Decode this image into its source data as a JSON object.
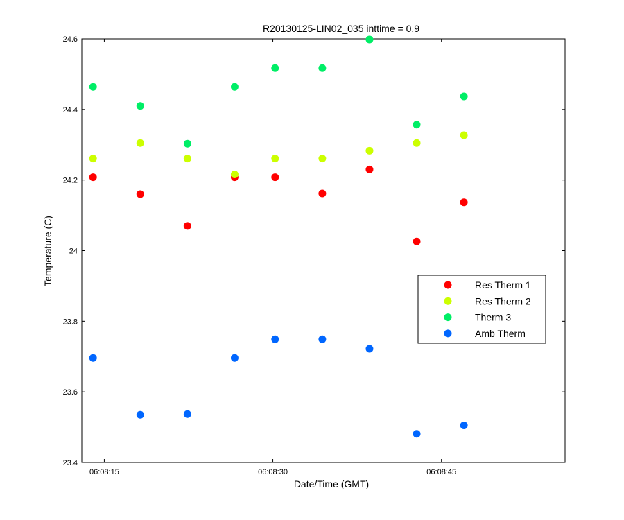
{
  "chart_data": {
    "type": "scatter",
    "title": "R20130125-LIN02_035 inttime = 0.9",
    "xlabel": "Date/Time (GMT)",
    "ylabel": "Temperature (C)",
    "xlim": [
      "06:08:13",
      "06:08:56"
    ],
    "ylim": [
      23.4,
      24.6
    ],
    "x_ticks": [
      "06:08:15",
      "06:08:30",
      "06:08:45"
    ],
    "y_ticks": [
      "23.4",
      "23.6",
      "23.8",
      "24",
      "24.2",
      "24.4",
      "24.6"
    ],
    "grid": false,
    "legend_position": "right",
    "x": [
      "06:08:14",
      "06:08:18.2",
      "06:08:22.4",
      "06:08:26.6",
      "06:08:30.2",
      "06:08:34.4",
      "06:08:38.6",
      "06:08:42.8",
      "06:08:47"
    ],
    "series": [
      {
        "name": "Res Therm 1",
        "color": "#ff0000",
        "values": [
          24.208,
          24.16,
          24.07,
          24.208,
          24.208,
          24.162,
          24.23,
          24.026,
          24.137
        ]
      },
      {
        "name": "Res Therm 2",
        "color": "#ccff00",
        "values": [
          24.261,
          24.305,
          24.261,
          24.216,
          24.261,
          24.261,
          24.283,
          24.305,
          24.327
        ]
      },
      {
        "name": "Therm 3",
        "color": "#00ee66",
        "values": [
          24.464,
          24.41,
          24.303,
          24.464,
          24.517,
          24.517,
          24.598,
          24.357,
          24.437
        ]
      },
      {
        "name": "Amb Therm",
        "color": "#0066ff",
        "values": [
          23.696,
          23.535,
          23.537,
          23.696,
          23.749,
          23.749,
          23.722,
          23.481,
          23.505
        ]
      }
    ]
  }
}
